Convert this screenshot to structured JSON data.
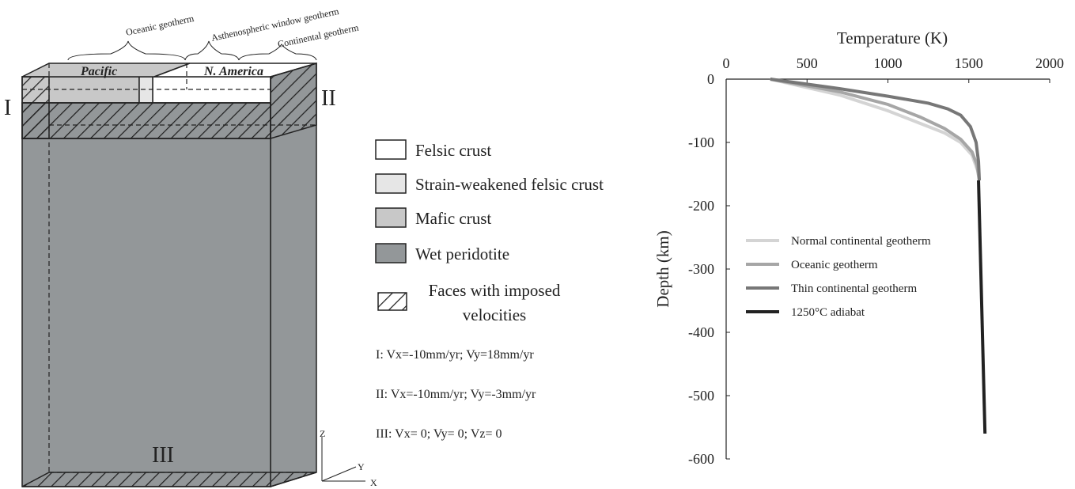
{
  "diagram": {
    "geotherm_labels": [
      "Oceanic geotherm",
      "Asthenospheric window geotherm",
      "Continental geotherm"
    ],
    "plates": [
      "Pacific",
      "N. America"
    ],
    "faces": [
      "I",
      "II",
      "III"
    ],
    "axes": [
      "Z",
      "Y",
      "X"
    ]
  },
  "legend": {
    "items": [
      "Felsic crust",
      "Strain-weakened felsic crust",
      "Mafic crust",
      "Wet peridotite"
    ],
    "hatch_label": [
      "Faces with imposed",
      "velocities"
    ],
    "conditions": [
      "I: Vx=-10mm/yr; Vy=18mm/yr",
      "II: Vx=-10mm/yr; Vy=-3mm/yr",
      "III: Vx= 0; Vy= 0; Vz= 0"
    ]
  },
  "chart_data": {
    "type": "line",
    "x_label": "Temperature (K)",
    "y_label": "Depth (km)",
    "xlim": [
      0,
      2000
    ],
    "xticks": [
      0,
      500,
      1000,
      1500,
      2000
    ],
    "ylim": [
      -600,
      0
    ],
    "yticks": [
      0,
      -100,
      -200,
      -300,
      -400,
      -500,
      -600
    ],
    "series": [
      {
        "name": "Normal continental geotherm",
        "color": "#d4d4d4",
        "x": [
          273,
          700,
          1000,
          1200,
          1350,
          1450,
          1520,
          1555,
          1565
        ],
        "values": [
          0,
          -25,
          -50,
          -70,
          -85,
          -100,
          -120,
          -145,
          -160
        ]
      },
      {
        "name": "Oceanic geotherm",
        "color": "#a6a6a6",
        "x": [
          273,
          700,
          1000,
          1200,
          1350,
          1450,
          1520,
          1550,
          1565
        ],
        "values": [
          0,
          -20,
          -40,
          -60,
          -78,
          -95,
          -115,
          -135,
          -160
        ]
      },
      {
        "name": "Thin continental geotherm",
        "color": "#777777",
        "x": [
          273,
          700,
          1000,
          1250,
          1370,
          1450,
          1510,
          1545,
          1560,
          1565
        ],
        "values": [
          0,
          -15,
          -27,
          -38,
          -47,
          -57,
          -75,
          -100,
          -130,
          -160
        ]
      },
      {
        "name": "1250°C adiabat",
        "color": "#222222",
        "x": [
          1560,
          1600
        ],
        "values": [
          -160,
          -560
        ]
      }
    ]
  }
}
